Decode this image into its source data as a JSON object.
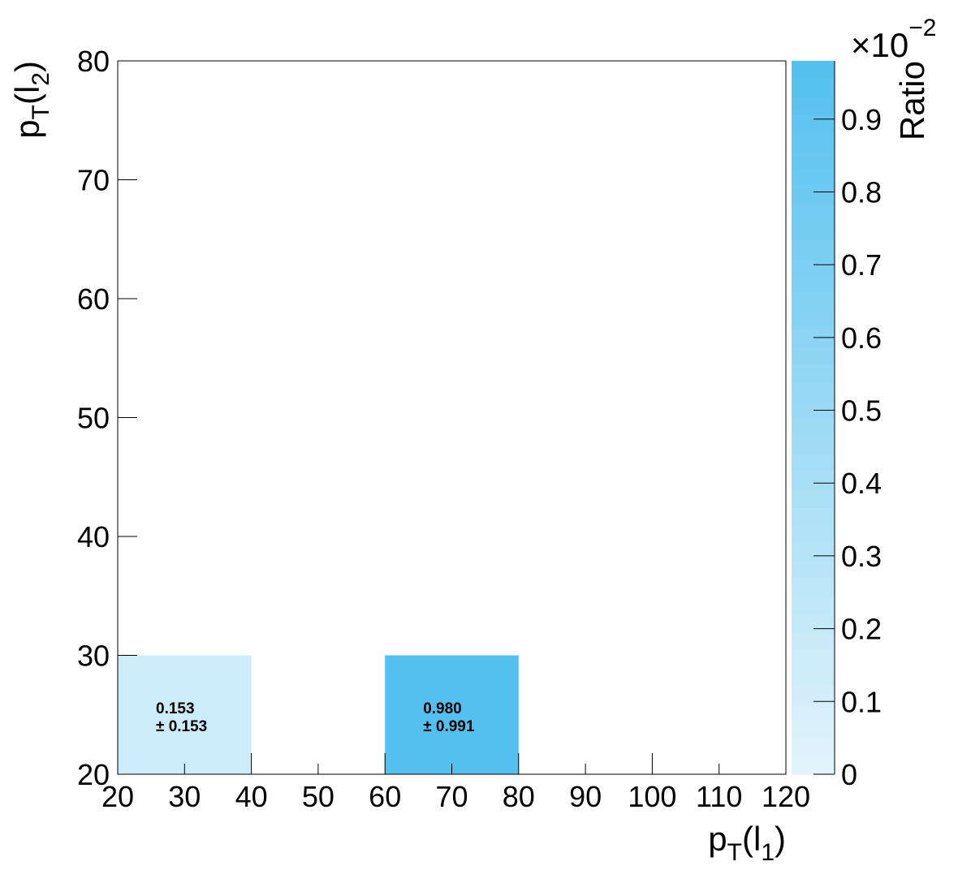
{
  "chart_data": {
    "type": "heatmap",
    "x_bins": [
      20,
      40,
      60,
      80,
      100,
      120
    ],
    "y_bins": [
      20,
      30,
      40,
      50,
      60,
      70,
      80
    ],
    "xlim": [
      20,
      120
    ],
    "ylim": [
      20,
      80
    ],
    "x_ticks": [
      20,
      30,
      40,
      50,
      60,
      70,
      80,
      90,
      100,
      110,
      120
    ],
    "y_ticks": [
      20,
      30,
      40,
      50,
      60,
      70,
      80
    ],
    "xlabel": {
      "base": "p",
      "sub1": "T",
      "mid": "(l",
      "sub2": "1",
      "end": ")"
    },
    "ylabel": {
      "base": "p",
      "sub1": "T",
      "mid": "(l",
      "sub2": "2",
      "end": ")"
    },
    "cells": [
      {
        "x": [
          20,
          40
        ],
        "y": [
          20,
          30
        ],
        "value": 0.153,
        "value_label": "0.153",
        "error_label": "± 0.153"
      },
      {
        "x": [
          60,
          80
        ],
        "y": [
          20,
          30
        ],
        "value": 0.98,
        "value_label": "0.980",
        "error_label": "± 0.991"
      }
    ],
    "colorbar": {
      "label": "Ratio",
      "multiplier": "×10",
      "exponent": "−2",
      "range": [
        0,
        0.98
      ],
      "ticks": [
        0,
        0.1,
        0.2,
        0.3,
        0.4,
        0.5,
        0.6,
        0.7,
        0.8,
        0.9
      ],
      "tick_labels": [
        "0",
        "0.1",
        "0.2",
        "0.3",
        "0.4",
        "0.5",
        "0.6",
        "0.7",
        "0.8",
        "0.9"
      ],
      "color_low": "#e3f4fb",
      "color_high": "#53c0ef"
    },
    "grid": false,
    "legend": "none"
  }
}
